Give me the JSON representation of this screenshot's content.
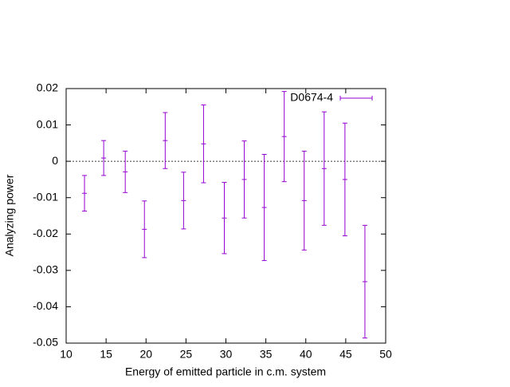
{
  "chart_data": {
    "type": "errorbar",
    "xlabel": "Energy of emitted particle in c.m. system",
    "ylabel": "Analyzing power",
    "xlim": [
      10,
      50
    ],
    "xticks": [
      10,
      15,
      20,
      25,
      30,
      35,
      40,
      45,
      50
    ],
    "ylim": [
      -0.05,
      0.02
    ],
    "yticks": [
      -0.05,
      -0.04,
      -0.03,
      -0.02,
      -0.01,
      0,
      0.01,
      0.02
    ],
    "zero_line": true,
    "legend_position": "top-right",
    "series": [
      {
        "name": "D0674-4",
        "color": "#9400d3",
        "x": [
          12.3,
          14.7,
          17.4,
          19.8,
          22.4,
          24.7,
          27.2,
          29.8,
          32.3,
          34.8,
          37.3,
          39.8,
          42.3,
          44.9,
          47.4
        ],
        "values": [
          -0.0088,
          0.0009,
          -0.0029,
          -0.0187,
          0.0057,
          -0.0108,
          0.0048,
          -0.0156,
          -0.005,
          -0.0127,
          0.0068,
          -0.0108,
          -0.002,
          -0.005,
          -0.0331
        ],
        "errors": [
          0.0049,
          0.0048,
          0.0057,
          0.0078,
          0.0077,
          0.0078,
          0.0107,
          0.0098,
          0.0106,
          0.0146,
          0.0124,
          0.0136,
          0.0156,
          0.0155,
          0.0155
        ]
      }
    ]
  }
}
